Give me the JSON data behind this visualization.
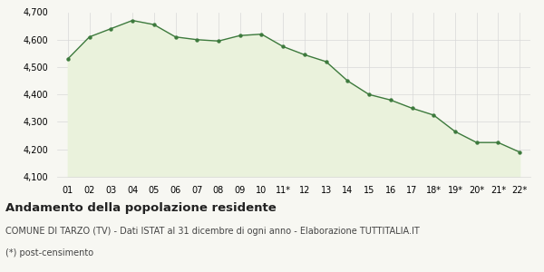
{
  "x_labels": [
    "01",
    "02",
    "03",
    "04",
    "05",
    "06",
    "07",
    "08",
    "09",
    "10",
    "11*",
    "12",
    "13",
    "14",
    "15",
    "16",
    "17",
    "18*",
    "19*",
    "20*",
    "21*",
    "22*"
  ],
  "values": [
    4530,
    4610,
    4640,
    4670,
    4655,
    4610,
    4600,
    4595,
    4615,
    4620,
    4575,
    4545,
    4520,
    4450,
    4400,
    4380,
    4350,
    4325,
    4265,
    4225,
    4225,
    4190
  ],
  "line_color": "#3d7a3d",
  "fill_color": "#eaf2dc",
  "marker_color": "#3d7a3d",
  "background_color": "#f7f7f2",
  "grid_color": "#d8d8d8",
  "ylim": [
    4100,
    4700
  ],
  "yticks": [
    4100,
    4200,
    4300,
    4400,
    4500,
    4600,
    4700
  ],
  "title": "Andamento della popolazione residente",
  "subtitle": "COMUNE DI TARZO (TV) - Dati ISTAT al 31 dicembre di ogni anno - Elaborazione TUTTITALIA.IT",
  "footnote": "(*) post-censimento",
  "title_fontsize": 9.5,
  "subtitle_fontsize": 7.0,
  "footnote_fontsize": 7.0,
  "tick_fontsize": 7.0
}
